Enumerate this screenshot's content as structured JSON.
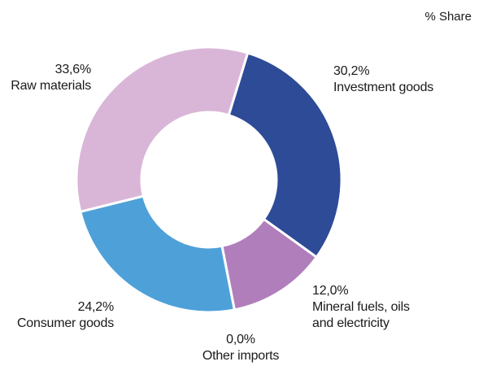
{
  "chart_data": {
    "type": "pie",
    "variant": "donut",
    "unit_label": "% Share",
    "slices": [
      {
        "name": "Investment goods",
        "value": 30.2,
        "value_label": "30,2%",
        "color": "#2e4b98"
      },
      {
        "name": "Mineral fuels, oils and electricity",
        "value": 12.0,
        "value_label": "12,0%",
        "color": "#b07fbb"
      },
      {
        "name": "Other imports",
        "value": 0.0,
        "value_label": "0,0%",
        "color": "#8a9bd0"
      },
      {
        "name": "Consumer goods",
        "value": 24.2,
        "value_label": "24,2%",
        "color": "#4ea1d8"
      },
      {
        "name": "Raw materials",
        "value": 33.6,
        "value_label": "33,6%",
        "color": "#d9b6d7"
      }
    ],
    "legend": "none"
  }
}
